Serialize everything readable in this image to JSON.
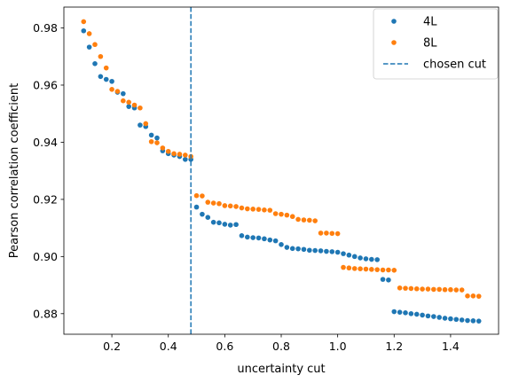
{
  "chart_data": {
    "type": "scatter",
    "title": "",
    "xlabel": "uncertainty cut",
    "ylabel": "Pearson correlation coefficient",
    "xlim": [
      0.03,
      1.57
    ],
    "ylim": [
      0.8728,
      0.9873
    ],
    "xticks": [
      0.2,
      0.4,
      0.6,
      0.8,
      1.0,
      1.2,
      1.4
    ],
    "xtick_labels": [
      "0.2",
      "0.4",
      "0.6",
      "0.8",
      "1.0",
      "1.2",
      "1.4"
    ],
    "yticks": [
      0.88,
      0.9,
      0.92,
      0.94,
      0.96,
      0.98
    ],
    "ytick_labels": [
      "0.88",
      "0.90",
      "0.92",
      "0.94",
      "0.96",
      "0.98"
    ],
    "grid": false,
    "legend_position": "top-right",
    "series": [
      {
        "name": "4L",
        "color": "#1f77b4",
        "x": [
          0.1,
          0.12,
          0.14,
          0.16,
          0.18,
          0.2,
          0.22,
          0.24,
          0.26,
          0.28,
          0.3,
          0.32,
          0.34,
          0.36,
          0.38,
          0.4,
          0.42,
          0.44,
          0.46,
          0.48,
          0.5,
          0.52,
          0.54,
          0.56,
          0.58,
          0.6,
          0.62,
          0.64,
          0.66,
          0.68,
          0.7,
          0.72,
          0.74,
          0.76,
          0.78,
          0.8,
          0.82,
          0.84,
          0.86,
          0.88,
          0.9,
          0.92,
          0.94,
          0.96,
          0.98,
          1.0,
          1.02,
          1.04,
          1.06,
          1.08,
          1.1,
          1.12,
          1.14,
          1.16,
          1.18,
          1.2,
          1.22,
          1.24,
          1.26,
          1.28,
          1.3,
          1.32,
          1.34,
          1.36,
          1.38,
          1.4,
          1.42,
          1.44,
          1.46,
          1.48,
          1.5
        ],
        "y": [
          0.979,
          0.9733,
          0.9675,
          0.963,
          0.962,
          0.9613,
          0.9575,
          0.957,
          0.9525,
          0.952,
          0.946,
          0.9455,
          0.9425,
          0.9415,
          0.937,
          0.936,
          0.9355,
          0.935,
          0.934,
          0.934,
          0.9173,
          0.9148,
          0.9137,
          0.912,
          0.9118,
          0.9113,
          0.911,
          0.9112,
          0.9073,
          0.9068,
          0.9066,
          0.9065,
          0.9062,
          0.9058,
          0.9055,
          0.9042,
          0.9032,
          0.9028,
          0.9027,
          0.9025,
          0.9022,
          0.9021,
          0.902,
          0.9018,
          0.9017,
          0.9015,
          0.901,
          0.9005,
          0.9,
          0.8995,
          0.8992,
          0.899,
          0.8989,
          0.892,
          0.8918,
          0.8807,
          0.8805,
          0.8803,
          0.88,
          0.8798,
          0.8795,
          0.8792,
          0.879,
          0.8787,
          0.8784,
          0.8782,
          0.878,
          0.8778,
          0.8776,
          0.8775,
          0.8774
        ]
      },
      {
        "name": "8L",
        "color": "#ff7f0e",
        "x": [
          0.1,
          0.12,
          0.14,
          0.16,
          0.18,
          0.2,
          0.22,
          0.24,
          0.26,
          0.28,
          0.3,
          0.32,
          0.34,
          0.36,
          0.38,
          0.4,
          0.42,
          0.44,
          0.46,
          0.48,
          0.5,
          0.52,
          0.54,
          0.56,
          0.58,
          0.6,
          0.62,
          0.64,
          0.66,
          0.68,
          0.7,
          0.72,
          0.74,
          0.76,
          0.78,
          0.8,
          0.82,
          0.84,
          0.86,
          0.88,
          0.9,
          0.92,
          0.94,
          0.96,
          0.98,
          1.0,
          1.02,
          1.04,
          1.06,
          1.08,
          1.1,
          1.12,
          1.14,
          1.16,
          1.18,
          1.2,
          1.22,
          1.24,
          1.26,
          1.28,
          1.3,
          1.32,
          1.34,
          1.36,
          1.38,
          1.4,
          1.42,
          1.44,
          1.46,
          1.48,
          1.5
        ],
        "y": [
          0.9822,
          0.978,
          0.9742,
          0.97,
          0.966,
          0.9585,
          0.9578,
          0.9545,
          0.954,
          0.953,
          0.952,
          0.9465,
          0.9402,
          0.9398,
          0.938,
          0.9368,
          0.936,
          0.9358,
          0.9355,
          0.935,
          0.9213,
          0.9212,
          0.919,
          0.9187,
          0.9185,
          0.9178,
          0.9177,
          0.9175,
          0.917,
          0.9167,
          0.9166,
          0.9165,
          0.9163,
          0.9162,
          0.915,
          0.9148,
          0.9145,
          0.914,
          0.913,
          0.9128,
          0.9127,
          0.9125,
          0.9082,
          0.9082,
          0.9081,
          0.908,
          0.8962,
          0.896,
          0.8958,
          0.8957,
          0.8956,
          0.8955,
          0.8954,
          0.8953,
          0.8953,
          0.8952,
          0.889,
          0.8889,
          0.8888,
          0.8887,
          0.8886,
          0.8886,
          0.8885,
          0.8885,
          0.8884,
          0.8884,
          0.8883,
          0.8883,
          0.8862,
          0.8862,
          0.8861
        ]
      }
    ],
    "vline": {
      "name": "chosen cut",
      "x": 0.48,
      "color": "#1f77b4",
      "style": "dashed"
    }
  }
}
